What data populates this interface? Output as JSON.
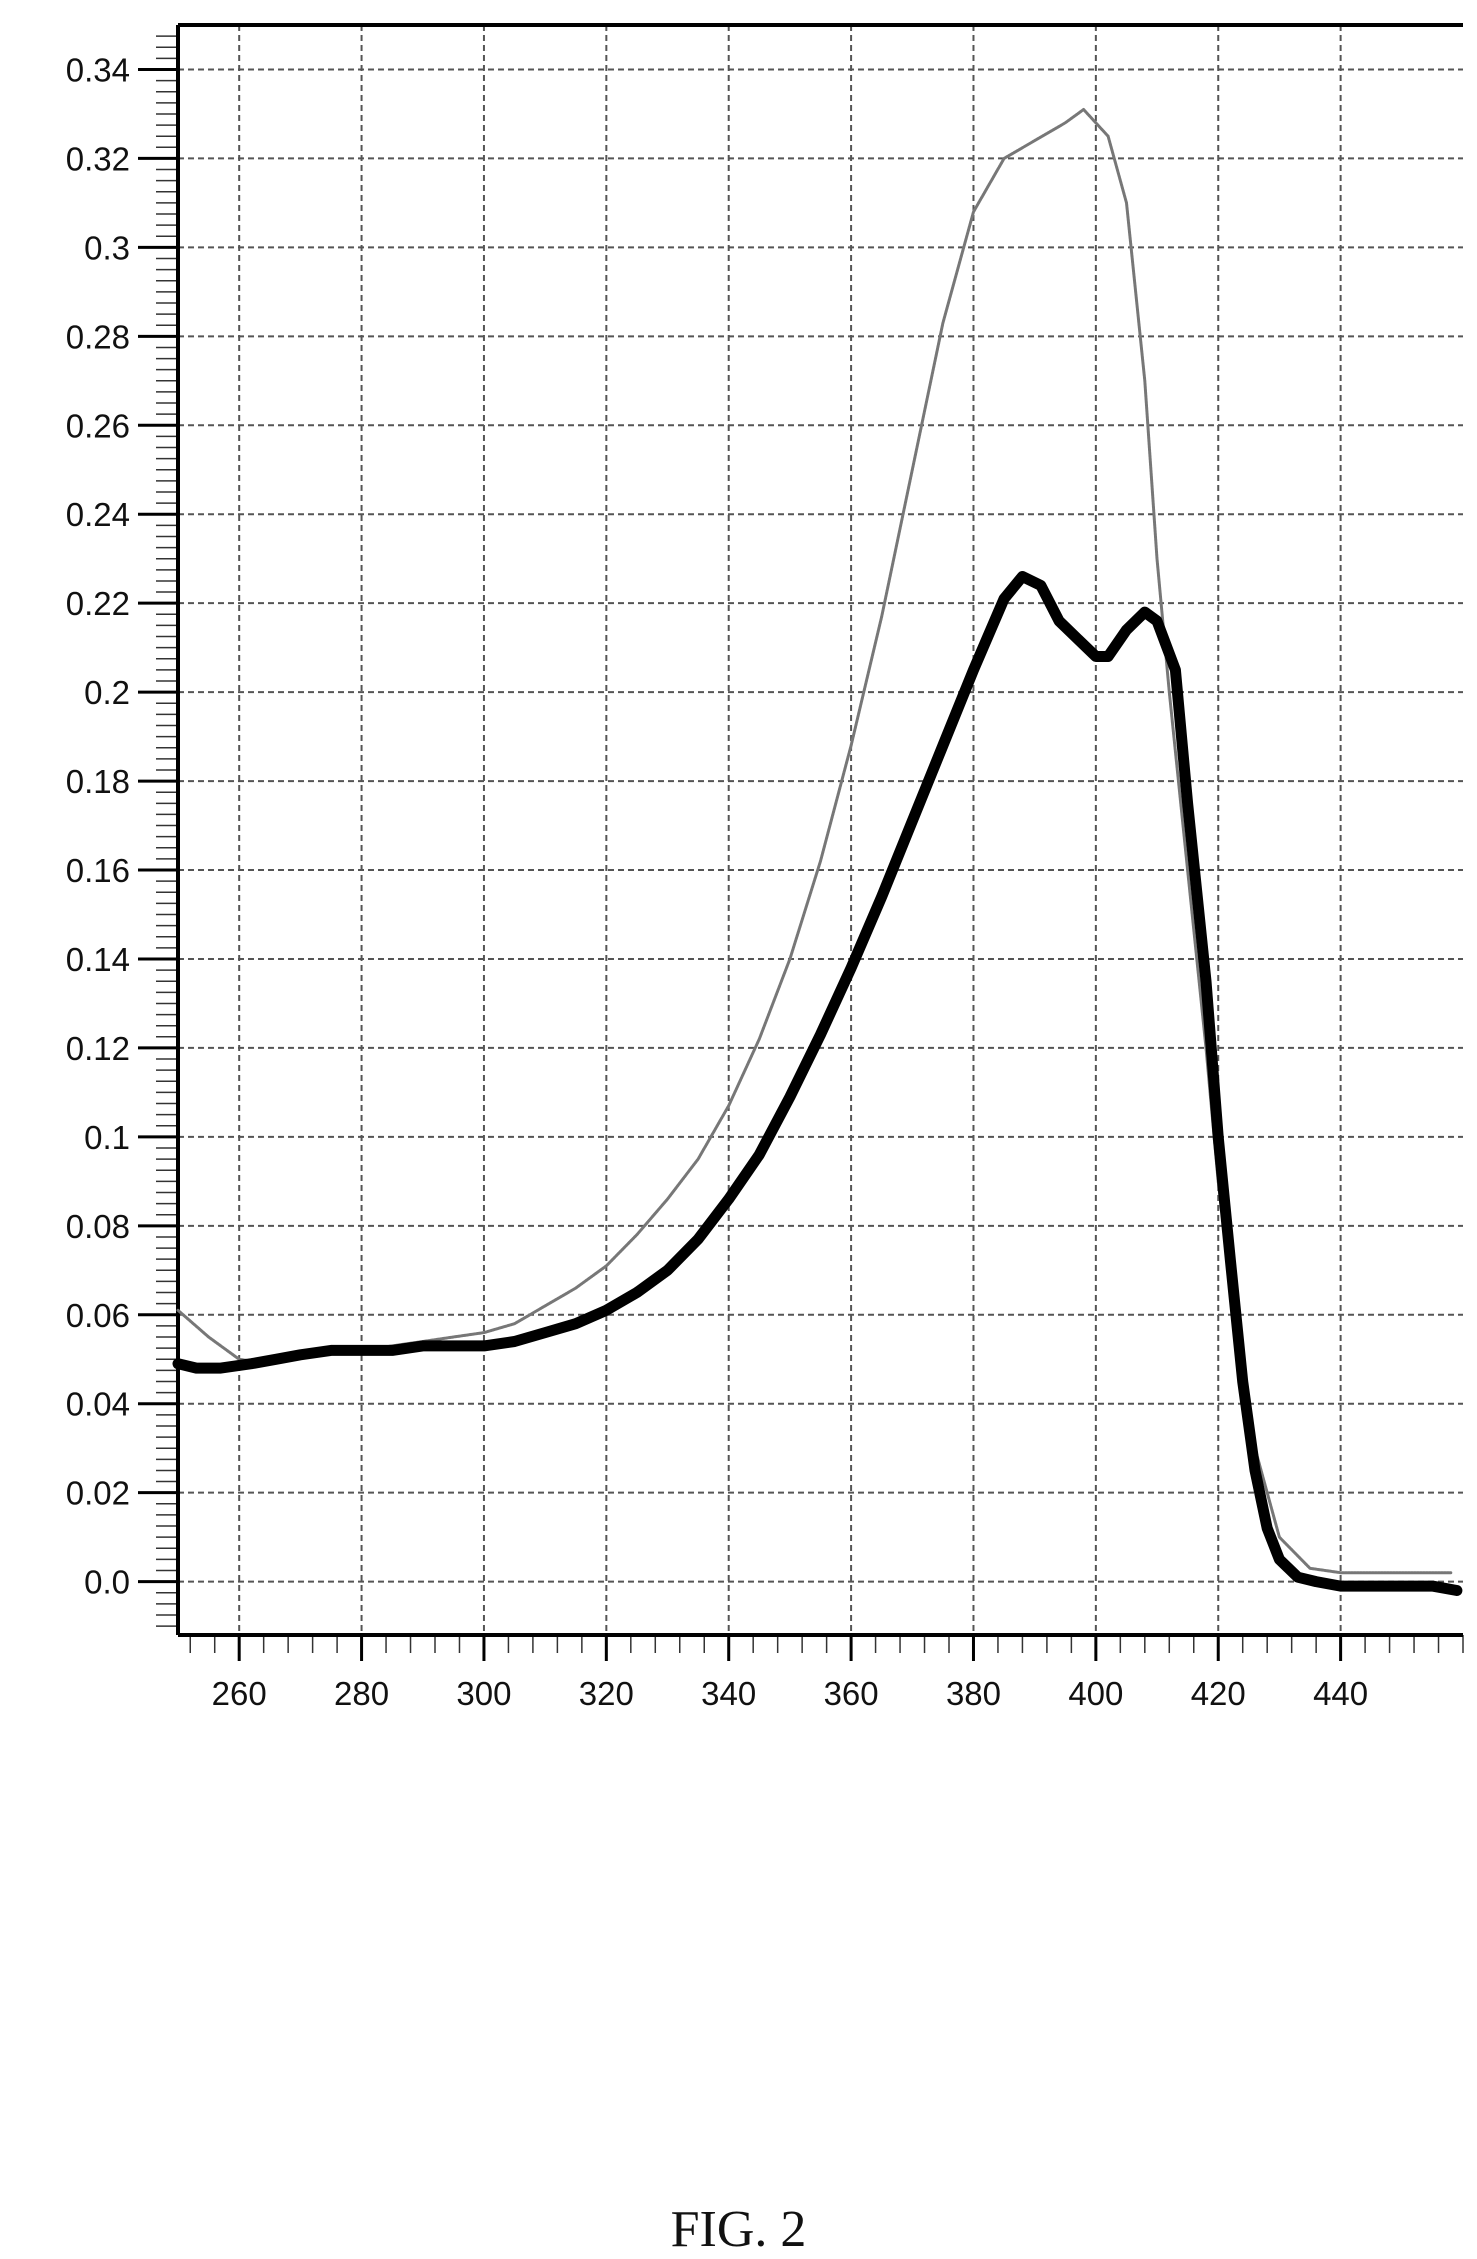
{
  "figure_label": "FIG. 2",
  "chart_data": {
    "type": "line",
    "xlim": [
      250,
      460
    ],
    "ylim": [
      -0.012,
      0.35
    ],
    "x_ticks": [
      260,
      280,
      300,
      320,
      340,
      360,
      380,
      400,
      420,
      440
    ],
    "x_tick_labels": [
      "260",
      "280",
      "300",
      "320",
      "340",
      "360",
      "380",
      "400",
      "420",
      "440"
    ],
    "y_ticks": [
      0.0,
      0.02,
      0.04,
      0.06,
      0.08,
      0.1,
      0.12,
      0.14,
      0.16,
      0.18,
      0.2,
      0.22,
      0.24,
      0.26,
      0.28,
      0.3,
      0.32,
      0.34
    ],
    "y_tick_labels": [
      "0.0",
      "0.02",
      "0.04",
      "0.06",
      "0.08",
      "0.1",
      "0.12",
      "0.14",
      "0.16",
      "0.18",
      "0.2",
      "0.22",
      "0.24",
      "0.26",
      "0.28",
      "0.3",
      "0.32",
      "0.34"
    ],
    "grid": true,
    "series": [
      {
        "style": "thin",
        "color": "#777777",
        "points": [
          [
            250,
            0.061
          ],
          [
            255,
            0.055
          ],
          [
            260,
            0.05
          ],
          [
            265,
            0.049
          ],
          [
            270,
            0.051
          ],
          [
            275,
            0.052
          ],
          [
            280,
            0.052
          ],
          [
            285,
            0.053
          ],
          [
            290,
            0.054
          ],
          [
            295,
            0.055
          ],
          [
            300,
            0.056
          ],
          [
            305,
            0.058
          ],
          [
            310,
            0.062
          ],
          [
            315,
            0.066
          ],
          [
            320,
            0.071
          ],
          [
            325,
            0.078
          ],
          [
            330,
            0.086
          ],
          [
            335,
            0.095
          ],
          [
            340,
            0.107
          ],
          [
            345,
            0.122
          ],
          [
            350,
            0.14
          ],
          [
            355,
            0.162
          ],
          [
            360,
            0.188
          ],
          [
            365,
            0.217
          ],
          [
            370,
            0.25
          ],
          [
            375,
            0.283
          ],
          [
            380,
            0.308
          ],
          [
            385,
            0.32
          ],
          [
            390,
            0.324
          ],
          [
            395,
            0.328
          ],
          [
            398,
            0.331
          ],
          [
            402,
            0.325
          ],
          [
            405,
            0.31
          ],
          [
            408,
            0.27
          ],
          [
            410,
            0.23
          ],
          [
            412,
            0.2
          ],
          [
            415,
            0.16
          ],
          [
            418,
            0.12
          ],
          [
            420,
            0.09
          ],
          [
            423,
            0.055
          ],
          [
            426,
            0.03
          ],
          [
            430,
            0.01
          ],
          [
            435,
            0.003
          ],
          [
            440,
            0.002
          ],
          [
            450,
            0.002
          ],
          [
            458,
            0.002
          ]
        ]
      },
      {
        "style": "thick",
        "color": "#000000",
        "points": [
          [
            250,
            0.049
          ],
          [
            253,
            0.048
          ],
          [
            257,
            0.048
          ],
          [
            262,
            0.049
          ],
          [
            266,
            0.05
          ],
          [
            270,
            0.051
          ],
          [
            275,
            0.052
          ],
          [
            280,
            0.052
          ],
          [
            285,
            0.052
          ],
          [
            290,
            0.053
          ],
          [
            295,
            0.053
          ],
          [
            300,
            0.053
          ],
          [
            305,
            0.054
          ],
          [
            310,
            0.056
          ],
          [
            315,
            0.058
          ],
          [
            320,
            0.061
          ],
          [
            325,
            0.065
          ],
          [
            330,
            0.07
          ],
          [
            335,
            0.077
          ],
          [
            340,
            0.086
          ],
          [
            345,
            0.096
          ],
          [
            350,
            0.109
          ],
          [
            355,
            0.123
          ],
          [
            360,
            0.138
          ],
          [
            365,
            0.154
          ],
          [
            370,
            0.171
          ],
          [
            375,
            0.188
          ],
          [
            380,
            0.205
          ],
          [
            385,
            0.221
          ],
          [
            388,
            0.226
          ],
          [
            391,
            0.224
          ],
          [
            394,
            0.216
          ],
          [
            397,
            0.212
          ],
          [
            400,
            0.208
          ],
          [
            402,
            0.208
          ],
          [
            405,
            0.214
          ],
          [
            408,
            0.218
          ],
          [
            410,
            0.216
          ],
          [
            413,
            0.205
          ],
          [
            415,
            0.175
          ],
          [
            418,
            0.135
          ],
          [
            420,
            0.1
          ],
          [
            422,
            0.072
          ],
          [
            424,
            0.045
          ],
          [
            426,
            0.025
          ],
          [
            428,
            0.012
          ],
          [
            430,
            0.005
          ],
          [
            433,
            0.001
          ],
          [
            436,
            0.0
          ],
          [
            440,
            -0.001
          ],
          [
            450,
            -0.001
          ],
          [
            455,
            -0.001
          ],
          [
            459,
            -0.002
          ]
        ]
      }
    ]
  }
}
